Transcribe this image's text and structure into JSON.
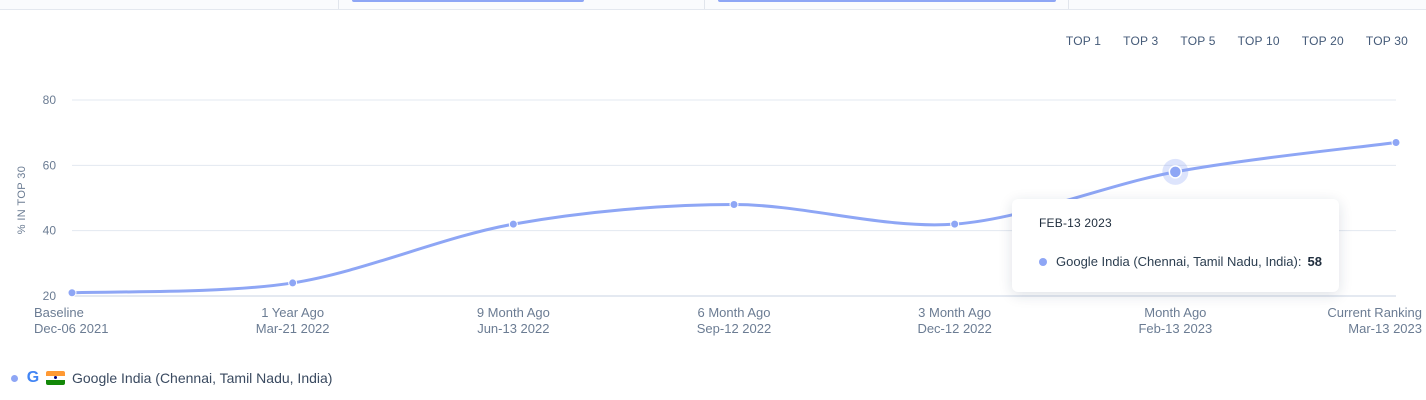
{
  "range_tabs": [
    {
      "label": "TOP 1",
      "active": false
    },
    {
      "label": "TOP 3",
      "active": false
    },
    {
      "label": "TOP 5",
      "active": false
    },
    {
      "label": "TOP 10",
      "active": false
    },
    {
      "label": "TOP 20",
      "active": false
    },
    {
      "label": "TOP 30",
      "active": true
    }
  ],
  "chart_data": {
    "type": "line",
    "ylabel": "% IN TOP 30",
    "ylim": [
      20,
      80
    ],
    "yticks": [
      20,
      40,
      60,
      80
    ],
    "grid": true,
    "categories": [
      {
        "period": "Baseline",
        "date": "Dec-06 2021"
      },
      {
        "period": "1 Year Ago",
        "date": "Mar-21 2022"
      },
      {
        "period": "9 Month Ago",
        "date": "Jun-13 2022"
      },
      {
        "period": "6 Month Ago",
        "date": "Sep-12 2022"
      },
      {
        "period": "3 Month Ago",
        "date": "Dec-12 2022"
      },
      {
        "period": "Month Ago",
        "date": "Feb-13 2023"
      },
      {
        "period": "Current Ranking",
        "date": "Mar-13 2023"
      }
    ],
    "series": [
      {
        "name": "Google India (Chennai, Tamil Nadu, India)",
        "color": "#8ea6f5",
        "values": [
          21,
          24,
          42,
          48,
          42,
          58,
          67
        ]
      }
    ],
    "highlighted_index": 5
  },
  "tooltip": {
    "date": "FEB-13 2023",
    "series_name": "Google India (Chennai, Tamil Nadu, India):",
    "value": "58"
  },
  "legend": {
    "label": "Google India (Chennai, Tamil Nadu, India)",
    "search_engine_icon": "google-icon",
    "flag_icon": "india-flag-icon",
    "google_letter": "G"
  }
}
